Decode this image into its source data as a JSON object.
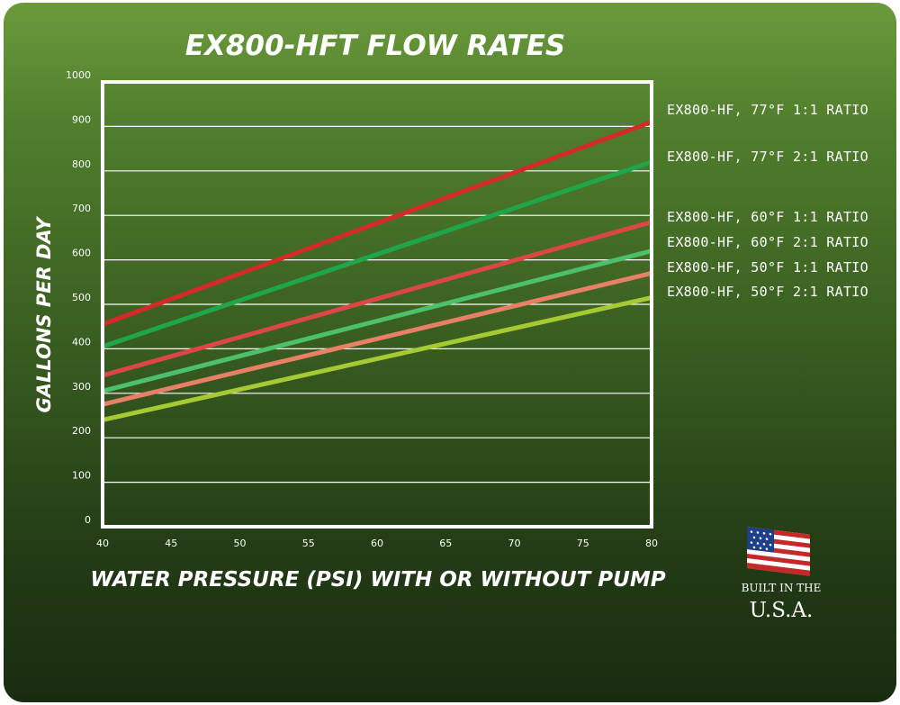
{
  "chart_data": {
    "type": "line",
    "title": "EX800-HFT FLOW RATES",
    "xlabel": "WATER PRESSURE (PSI) WITH OR WITHOUT PUMP",
    "ylabel": "GALLONS PER DAY",
    "xlim": [
      40,
      80
    ],
    "ylim": [
      0,
      1000
    ],
    "x_ticks": [
      40,
      45,
      50,
      55,
      60,
      65,
      70,
      75,
      80
    ],
    "y_ticks": [
      0,
      100,
      200,
      300,
      400,
      500,
      600,
      700,
      800,
      900,
      1000
    ],
    "grid": true,
    "legend_position": "right",
    "series": [
      {
        "name": "EX800-HF, 77°F 1:1 RATIO",
        "color": "#d42a2a",
        "x": [
          40,
          80
        ],
        "values": [
          455,
          910
        ]
      },
      {
        "name": "EX800-HF, 77°F 2:1 RATIO",
        "color": "#1fa64a",
        "x": [
          40,
          80
        ],
        "values": [
          405,
          820
        ]
      },
      {
        "name": "EX800-HF, 60°F 1:1 RATIO",
        "color": "#dc4646",
        "x": [
          40,
          80
        ],
        "values": [
          340,
          685
        ]
      },
      {
        "name": "EX800-HF, 60°F 2:1 RATIO",
        "color": "#4cc06a",
        "x": [
          40,
          80
        ],
        "values": [
          305,
          620
        ]
      },
      {
        "name": "EX800-HF, 50°F 1:1 RATIO",
        "color": "#e88068",
        "x": [
          40,
          80
        ],
        "values": [
          275,
          570
        ]
      },
      {
        "name": "EX800-HF, 50°F 2:1 RATIO",
        "color": "#a6ca34",
        "x": [
          40,
          80
        ],
        "values": [
          240,
          515
        ]
      }
    ]
  },
  "badge": {
    "line1": "BUILT IN THE",
    "line2": "U.S.A."
  }
}
